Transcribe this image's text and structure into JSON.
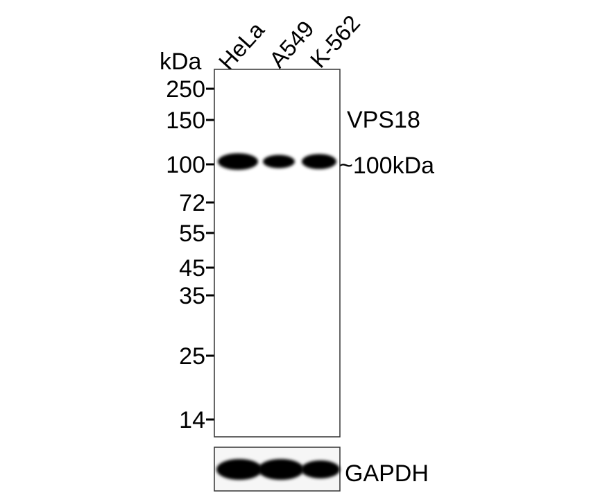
{
  "unit_label": "kDa",
  "lanes": [
    "HeLa",
    "A549",
    "K-562"
  ],
  "markers": [
    "250",
    "150",
    "100",
    "72",
    "55",
    "45",
    "35",
    "25",
    "14"
  ],
  "target": {
    "name": "VPS18",
    "size_label": "~100kDa",
    "relative_band_intensity": [
      1.0,
      0.55,
      0.8
    ]
  },
  "loading_control": {
    "name": "GAPDH",
    "relative_band_intensity": [
      1.0,
      1.0,
      0.7
    ]
  },
  "colors": {
    "band": "#000000",
    "background": "#ffffff",
    "frame": "#333333"
  }
}
